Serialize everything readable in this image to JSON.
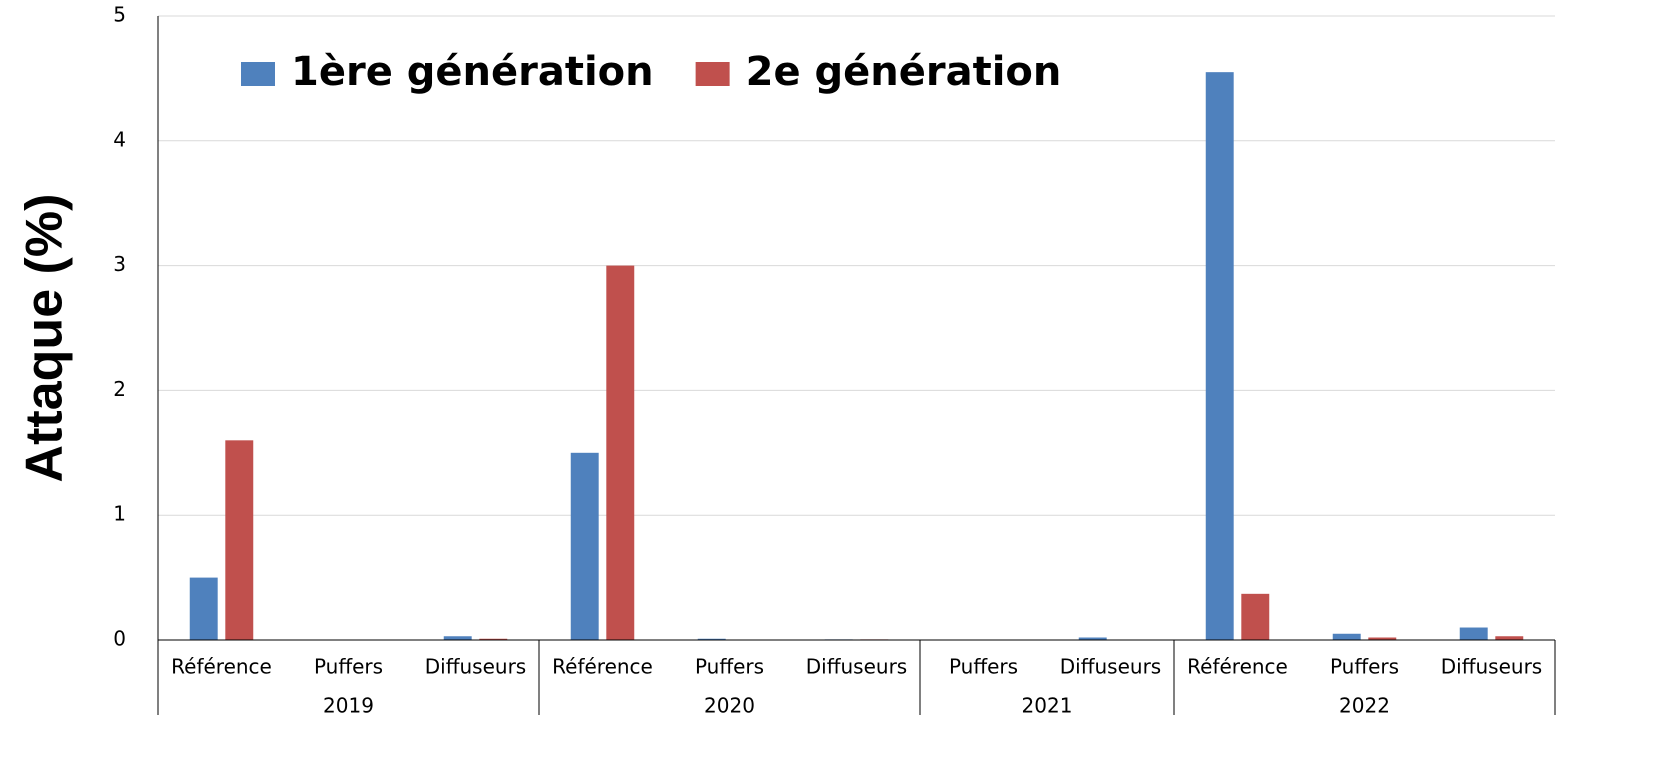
{
  "chart_data": {
    "type": "bar",
    "y_label": "Attaque (%)",
    "groups": [
      {
        "name": "2019",
        "categories": [
          "Référence",
          "Puffers",
          "Diffuseurs"
        ]
      },
      {
        "name": "2020",
        "categories": [
          "Référence",
          "Puffers",
          "Diffuseurs"
        ]
      },
      {
        "name": "2021",
        "categories": [
          "Puffers",
          "Diffuseurs"
        ]
      },
      {
        "name": "2022",
        "categories": [
          "Référence",
          "Puffers",
          "Diffuseurs"
        ]
      }
    ],
    "series": [
      {
        "name": "1ère génération",
        "color": "#4f81bd",
        "values": [
          0.5,
          0,
          0.03,
          1.5,
          0.01,
          0.005,
          0,
          0.02,
          4.55,
          0.05,
          0.1
        ]
      },
      {
        "name": "2e génération",
        "color": "#c0504d",
        "values": [
          1.6,
          0,
          0.01,
          3.0,
          0,
          0.005,
          0,
          0,
          0.37,
          0.02,
          0.03
        ]
      }
    ],
    "ylim": [
      0,
      5
    ],
    "yticks": [
      0,
      1,
      2,
      3,
      4,
      5
    ],
    "grid": true,
    "legend": "top-left"
  }
}
